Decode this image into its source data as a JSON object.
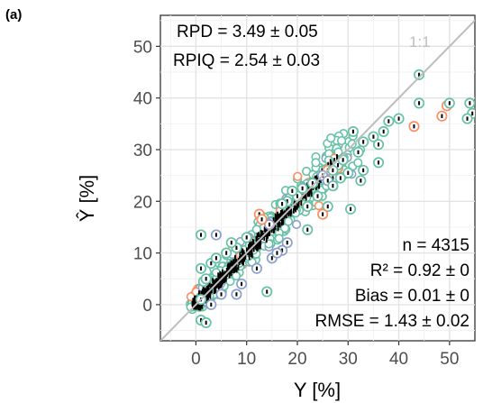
{
  "panel_label": "(a)",
  "chart_data": {
    "type": "scatter",
    "xlabel": "Y [%]",
    "ylabel": "Ŷ [%]",
    "xlim": [
      -7,
      55
    ],
    "ylim": [
      -7,
      56
    ],
    "xticks": [
      0,
      10,
      20,
      30,
      40,
      50
    ],
    "yticks": [
      0,
      10,
      20,
      30,
      40,
      50
    ],
    "grid": true,
    "reference_line": {
      "label": "1:1",
      "slope": 1,
      "intercept": 0,
      "color": "#bdbdbd"
    },
    "top_left_stats": {
      "rpd": "RPD = 3.49 ± 0.05",
      "rpiq": "RPIQ = 2.54 ± 0.03"
    },
    "bottom_right_stats": {
      "n": "n = 4315",
      "r2": "R² = 0.92 ± 0",
      "bias": "Bias = 0.01 ± 0",
      "rmse": "RMSE = 1.43 ± 0.02"
    },
    "marker_colors": {
      "teal": "#66c2a5",
      "orange": "#fc8d62",
      "purple": "#8da0cb",
      "error_bar": "#000000"
    },
    "highlighted_points": [
      {
        "x": 44,
        "y": 44.5,
        "group": "teal"
      },
      {
        "x": 44,
        "y": 39,
        "group": "teal"
      },
      {
        "x": 49.5,
        "y": 38.5,
        "group": "orange"
      },
      {
        "x": 48.5,
        "y": 36.5,
        "group": "orange"
      },
      {
        "x": 50,
        "y": 39,
        "group": "teal"
      },
      {
        "x": 54,
        "y": 39,
        "group": "teal"
      },
      {
        "x": 54.5,
        "y": 37,
        "group": "teal"
      },
      {
        "x": 53.5,
        "y": 36,
        "group": "teal"
      },
      {
        "x": 43,
        "y": 34.5,
        "group": "orange"
      },
      {
        "x": 40,
        "y": 36,
        "group": "teal"
      },
      {
        "x": 38,
        "y": 35.5,
        "group": "teal"
      },
      {
        "x": 37,
        "y": 33.5,
        "group": "teal"
      },
      {
        "x": 35,
        "y": 32.5,
        "group": "teal"
      },
      {
        "x": 33,
        "y": 31.5,
        "group": "teal"
      },
      {
        "x": 36,
        "y": 31,
        "group": "teal"
      },
      {
        "x": 36,
        "y": 27.5,
        "group": "teal"
      },
      {
        "x": 32,
        "y": 29.5,
        "group": "teal"
      },
      {
        "x": 33,
        "y": 26,
        "group": "teal"
      },
      {
        "x": 32.5,
        "y": 24,
        "group": "teal"
      },
      {
        "x": 30,
        "y": 25.5,
        "group": "teal"
      },
      {
        "x": 28,
        "y": 26.5,
        "group": "orange"
      },
      {
        "x": 26,
        "y": 26,
        "group": "orange"
      },
      {
        "x": 27,
        "y": 24.5,
        "group": "orange"
      },
      {
        "x": 25,
        "y": 25,
        "group": "purple"
      },
      {
        "x": 26,
        "y": 24,
        "group": "purple"
      },
      {
        "x": 27,
        "y": 23,
        "group": "teal"
      },
      {
        "x": 28.5,
        "y": 24.5,
        "group": "teal"
      },
      {
        "x": 31,
        "y": 33.5,
        "group": "teal"
      },
      {
        "x": 30.5,
        "y": 18.5,
        "group": "teal"
      },
      {
        "x": 26,
        "y": 19,
        "group": "teal"
      },
      {
        "x": 25,
        "y": 17.5,
        "group": "orange"
      },
      {
        "x": 22,
        "y": 14.5,
        "group": "teal"
      },
      {
        "x": 18,
        "y": 12,
        "group": "purple"
      },
      {
        "x": 17,
        "y": 10.5,
        "group": "purple"
      },
      {
        "x": 14.5,
        "y": 15.5,
        "group": "purple"
      },
      {
        "x": 12.5,
        "y": 17.5,
        "group": "orange"
      },
      {
        "x": 13,
        "y": 16.5,
        "group": "orange"
      },
      {
        "x": 4,
        "y": 13.5,
        "group": "purple"
      },
      {
        "x": 1,
        "y": 13.5,
        "group": "teal"
      },
      {
        "x": 14,
        "y": 2.5,
        "group": "teal"
      },
      {
        "x": 1,
        "y": 7,
        "group": "teal"
      },
      {
        "x": 1.5,
        "y": 4.5,
        "group": "teal"
      },
      {
        "x": 1,
        "y": 1,
        "group": "teal"
      },
      {
        "x": 1,
        "y": -3,
        "group": "teal"
      },
      {
        "x": 2,
        "y": -3.5,
        "group": "teal"
      },
      {
        "x": 3,
        "y": 0,
        "group": "purple"
      },
      {
        "x": 5,
        "y": 2,
        "group": "purple"
      },
      {
        "x": 8,
        "y": 2,
        "group": "purple"
      },
      {
        "x": 9,
        "y": 4,
        "group": "purple"
      },
      {
        "x": 12,
        "y": 7,
        "group": "purple"
      },
      {
        "x": 15,
        "y": 9,
        "group": "purple"
      },
      {
        "x": 16,
        "y": 10,
        "group": "purple"
      },
      {
        "x": 20,
        "y": 21,
        "group": "teal"
      },
      {
        "x": 21,
        "y": 22.5,
        "group": "teal"
      },
      {
        "x": 23,
        "y": 23.5,
        "group": "teal"
      },
      {
        "x": 19,
        "y": 22,
        "group": "teal"
      },
      {
        "x": 18,
        "y": 20,
        "group": "teal"
      },
      {
        "x": 17,
        "y": 19.5,
        "group": "teal"
      },
      {
        "x": 24,
        "y": 21,
        "group": "teal"
      },
      {
        "x": 22,
        "y": 19,
        "group": "teal"
      },
      {
        "x": 28,
        "y": 27,
        "group": "teal"
      },
      {
        "x": 29,
        "y": 28,
        "group": "teal"
      },
      {
        "x": 27,
        "y": 26,
        "group": "teal"
      },
      {
        "x": 6,
        "y": 10,
        "group": "teal"
      },
      {
        "x": 8,
        "y": 11,
        "group": "teal"
      },
      {
        "x": 10,
        "y": 13,
        "group": "teal"
      },
      {
        "x": 7,
        "y": 12,
        "group": "teal"
      },
      {
        "x": 3,
        "y": 8,
        "group": "teal"
      },
      {
        "x": 4,
        "y": 9,
        "group": "teal"
      },
      {
        "x": 2,
        "y": 5,
        "group": "teal"
      }
    ]
  }
}
